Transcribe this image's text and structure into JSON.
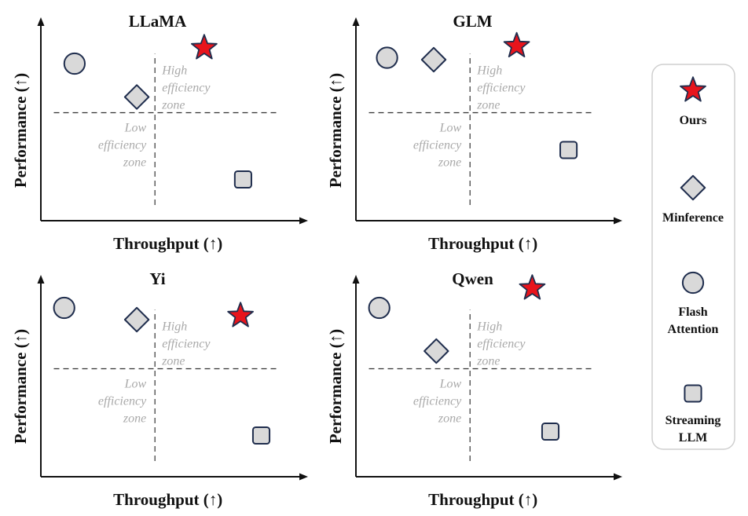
{
  "chart_data": {
    "type": "scatter",
    "colors": {
      "ours_fill": "#e8141c",
      "baseline_fill": "#d9d9d9",
      "marker_stroke": "#1f2d4d",
      "zone_text": "#a9a9a9"
    },
    "axes": {
      "xlabel": "Throughput (↑)",
      "ylabel": "Performance (↑)",
      "xlim": [
        0,
        1
      ],
      "ylim": [
        0,
        1
      ],
      "quadrant_divider": {
        "x": 0.44,
        "y": 0.55
      },
      "grid": false
    },
    "zones": {
      "high": [
        "High",
        "efficiency",
        "zone"
      ],
      "low": [
        "Low",
        "efficiency",
        "zone"
      ]
    },
    "legend": {
      "position": "right",
      "entries": [
        {
          "method": "ours",
          "marker": "star-icon",
          "label": [
            "Ours"
          ]
        },
        {
          "method": "minference",
          "marker": "diamond-icon",
          "label": [
            "Minference"
          ]
        },
        {
          "method": "flash",
          "marker": "circle-icon",
          "label": [
            "Flash",
            "Attention"
          ]
        },
        {
          "method": "streaming",
          "marker": "square-icon",
          "label": [
            "Streaming",
            "LLM"
          ]
        }
      ]
    },
    "panels": [
      {
        "title": "LLaMA",
        "points": [
          {
            "method": "ours",
            "x": 0.63,
            "y": 0.88
          },
          {
            "method": "minference",
            "x": 0.37,
            "y": 0.63
          },
          {
            "method": "flash",
            "x": 0.13,
            "y": 0.8
          },
          {
            "method": "streaming",
            "x": 0.78,
            "y": 0.21
          }
        ]
      },
      {
        "title": "GLM",
        "points": [
          {
            "method": "ours",
            "x": 0.62,
            "y": 0.89
          },
          {
            "method": "minference",
            "x": 0.3,
            "y": 0.82
          },
          {
            "method": "flash",
            "x": 0.12,
            "y": 0.83
          },
          {
            "method": "streaming",
            "x": 0.82,
            "y": 0.36
          }
        ]
      },
      {
        "title": "Yi",
        "points": [
          {
            "method": "ours",
            "x": 0.77,
            "y": 0.82
          },
          {
            "method": "minference",
            "x": 0.37,
            "y": 0.8
          },
          {
            "method": "flash",
            "x": 0.09,
            "y": 0.86
          },
          {
            "method": "streaming",
            "x": 0.85,
            "y": 0.21
          }
        ]
      },
      {
        "title": "Qwen",
        "points": [
          {
            "method": "ours",
            "x": 0.68,
            "y": 0.96
          },
          {
            "method": "minference",
            "x": 0.31,
            "y": 0.64
          },
          {
            "method": "flash",
            "x": 0.09,
            "y": 0.86
          },
          {
            "method": "streaming",
            "x": 0.75,
            "y": 0.23
          }
        ]
      }
    ]
  }
}
